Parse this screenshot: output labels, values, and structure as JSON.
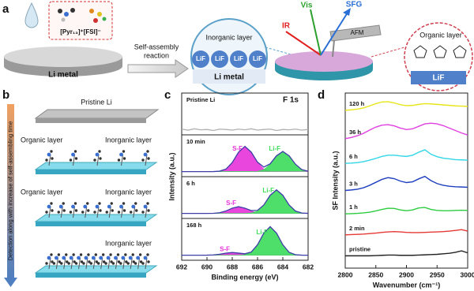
{
  "diagram_a": {
    "label": "a",
    "ionic_liquid": "[Pyr₁₃]⁺[FSI]⁻",
    "substrate": "Li metal",
    "arrow_label": [
      "Self-assembly",
      "reaction"
    ],
    "inorganic_zoom": {
      "title": "Inorganic layer",
      "grains": [
        "LiF",
        "LiF",
        "LiF",
        "LiF"
      ],
      "substrate": "Li metal"
    },
    "beams": {
      "vis": "Vis",
      "sfg": "SFG",
      "ir": "IR"
    },
    "probe": "AFM",
    "organic_zoom": {
      "title": "Organic layer",
      "base": "LiF"
    }
  },
  "diagram_b": {
    "label": "b",
    "pristine": "Pristine  Li",
    "stages": [
      {
        "organic": "Organic layer",
        "inorganic": "Inorganic layer"
      },
      {
        "organic": "Organic layer",
        "inorganic": "Inorganic layer"
      },
      {
        "inorganic": "Inorganic layer"
      }
    ],
    "time_axis": "Detection along with increase of self-assembling time"
  },
  "chart_data": [
    {
      "type": "spectra",
      "panel_label": "c",
      "title": "F 1s",
      "xlabel": "Binding energy (eV)",
      "ylabel": "Intensity (a.u.)",
      "xlim": [
        692,
        682
      ],
      "xticks": [
        692,
        690,
        688,
        686,
        684,
        682
      ],
      "ylim": [
        -0.15,
        1
      ],
      "x": [
        692,
        691.5,
        691,
        690.5,
        690,
        689.5,
        689,
        688.5,
        688,
        687.5,
        687,
        686.5,
        686,
        685.5,
        685,
        684.5,
        684,
        683.5,
        683,
        682.5,
        682
      ],
      "panels": [
        {
          "label": "Pristine Li",
          "series": [
            {
              "color": "#b0b0b0",
              "values": [
                0.02,
                -0.01,
                0.03,
                0,
                0.01,
                -0.02,
                0.02,
                0.01,
                -0.01,
                0.02,
                0,
                0.03,
                -0.01,
                0.01,
                0.02,
                -0.02,
                0.01,
                0,
                0.02,
                -0.01,
                0.01
              ]
            }
          ]
        },
        {
          "label": "10 min",
          "series": [
            {
              "name": "S-F",
              "color": "#e632d8",
              "fill": true,
              "values": [
                0,
                0,
                0,
                0,
                0,
                0.001,
                0.013,
                0.075,
                0.27,
                0.58,
                0.75,
                0.58,
                0.27,
                0.075,
                0.013,
                0.001,
                0,
                0,
                0,
                0,
                0
              ]
            },
            {
              "name": "Li-F",
              "color": "#3bdc5a",
              "fill": true,
              "values": [
                0,
                0,
                0,
                0,
                0,
                0,
                0,
                0,
                0,
                0,
                0,
                0.001,
                0.01,
                0.06,
                0.22,
                0.47,
                0.6,
                0.47,
                0.22,
                0.06,
                0.01
              ]
            },
            {
              "color": "#3e3ea8",
              "values": [
                0,
                0,
                0,
                0,
                0,
                0.001,
                0.013,
                0.075,
                0.27,
                0.58,
                0.75,
                0.581,
                0.28,
                0.135,
                0.233,
                0.471,
                0.6,
                0.47,
                0.22,
                0.06,
                0.01
              ]
            }
          ]
        },
        {
          "label": "6 h",
          "series": [
            {
              "name": "S-F",
              "color": "#e632d8",
              "fill": true,
              "values": [
                0,
                0,
                0,
                0,
                0,
                0.003,
                0.02,
                0.072,
                0.155,
                0.2,
                0.155,
                0.072,
                0.02,
                0.003,
                0,
                0,
                0,
                0,
                0,
                0,
                0
              ]
            },
            {
              "name": "Li-F",
              "color": "#3bdc5a",
              "fill": true,
              "values": [
                0,
                0,
                0,
                0,
                0,
                0,
                0,
                0,
                0,
                0,
                0.001,
                0.012,
                0.07,
                0.25,
                0.54,
                0.7,
                0.54,
                0.25,
                0.07,
                0.012,
                0.001
              ]
            },
            {
              "color": "#3e3ea8",
              "values": [
                0,
                0,
                0,
                0,
                0,
                0.003,
                0.02,
                0.072,
                0.155,
                0.2,
                0.156,
                0.084,
                0.09,
                0.253,
                0.54,
                0.7,
                0.54,
                0.25,
                0.07,
                0.012,
                0.001
              ]
            }
          ]
        },
        {
          "label": "168 h",
          "series": [
            {
              "name": "S-F",
              "color": "#e632d8",
              "fill": true,
              "values": [
                0,
                0,
                0,
                0,
                0.001,
                0.008,
                0.029,
                0.062,
                0.08,
                0.062,
                0.029,
                0.008,
                0.001,
                0,
                0,
                0,
                0,
                0,
                0,
                0,
                0
              ]
            },
            {
              "name": "Li-F",
              "color": "#3bdc5a",
              "fill": true,
              "values": [
                0,
                0,
                0,
                0,
                0,
                0,
                0,
                0,
                0,
                0.001,
                0.014,
                0.085,
                0.31,
                0.66,
                0.85,
                0.66,
                0.31,
                0.085,
                0.014,
                0.001,
                0
              ]
            },
            {
              "color": "#3e3ea8",
              "values": [
                0,
                0,
                0,
                0,
                0.001,
                0.008,
                0.029,
                0.062,
                0.08,
                0.063,
                0.043,
                0.093,
                0.311,
                0.66,
                0.85,
                0.66,
                0.31,
                0.085,
                0.014,
                0.001,
                0
              ]
            }
          ]
        }
      ]
    },
    {
      "type": "line",
      "panel_label": "d",
      "xlabel": "Wavenumber (cm⁻¹)",
      "ylabel": "SF Intensity (a.u.)",
      "xlim": [
        2800,
        3000
      ],
      "xticks": [
        2800,
        2850,
        2900,
        2950,
        3000
      ],
      "ylim": [
        0.5,
        7.6
      ],
      "x": [
        2800,
        2810,
        2820,
        2830,
        2840,
        2850,
        2860,
        2870,
        2880,
        2890,
        2900,
        2910,
        2920,
        2930,
        2940,
        2950,
        2960,
        2970,
        2980,
        2990,
        3000
      ],
      "series": [
        {
          "name": "120 h",
          "color": "#e6e61a",
          "values": [
            6.9,
            6.92,
            6.95,
            7.0,
            7.08,
            7.17,
            7.24,
            7.25,
            7.2,
            7.13,
            7.09,
            7.1,
            7.14,
            7.17,
            7.16,
            7.14,
            7.12,
            7.1,
            7.08,
            7.07,
            7.06
          ]
        },
        {
          "name": "36 h",
          "color": "#e040e0",
          "values": [
            5.75,
            5.8,
            5.87,
            5.97,
            6.1,
            6.22,
            6.3,
            6.32,
            6.27,
            6.18,
            6.12,
            6.15,
            6.25,
            6.35,
            6.38,
            6.35,
            6.28,
            6.18,
            6.08,
            5.98,
            5.9
          ]
        },
        {
          "name": "6 h",
          "color": "#33d6e6",
          "values": [
            4.75,
            4.76,
            4.78,
            4.82,
            4.88,
            4.95,
            5.03,
            5.08,
            5.08,
            5.05,
            5.03,
            5.08,
            5.2,
            5.3,
            5.12,
            5.02,
            4.96,
            4.93,
            4.9,
            4.89,
            4.88
          ]
        },
        {
          "name": "3 h",
          "color": "#1f3fbf",
          "values": [
            3.65,
            3.67,
            3.7,
            3.76,
            3.86,
            3.98,
            4.1,
            4.17,
            4.13,
            4.03,
            3.97,
            4.0,
            4.12,
            4.22,
            4.05,
            3.93,
            3.86,
            3.82,
            3.8,
            3.79,
            3.78
          ]
        },
        {
          "name": "1 h",
          "color": "#2ecc40",
          "values": [
            2.7,
            2.71,
            2.72,
            2.74,
            2.77,
            2.82,
            2.88,
            2.93,
            2.92,
            2.86,
            2.83,
            2.86,
            2.94,
            2.96,
            2.88,
            2.84,
            2.83,
            2.83,
            2.84,
            2.85,
            2.84
          ]
        },
        {
          "name": "2 min",
          "color": "#e53935",
          "values": [
            1.85,
            1.86,
            1.87,
            1.88,
            1.9,
            1.92,
            1.95,
            1.97,
            1.98,
            1.97,
            1.95,
            1.94,
            1.94,
            1.95,
            1.96,
            1.97,
            1.98,
            2.0,
            2.03,
            2.06,
            2.0
          ]
        },
        {
          "name": "pristine",
          "color": "#222222",
          "values": [
            1,
            1,
            1,
            1,
            1,
            1.01,
            1.02,
            1.03,
            1.03,
            1.02,
            1.02,
            1.02,
            1.03,
            1.04,
            1.05,
            1.06,
            1.08,
            1.1,
            1.14,
            1.2,
            1.12
          ]
        }
      ]
    }
  ]
}
